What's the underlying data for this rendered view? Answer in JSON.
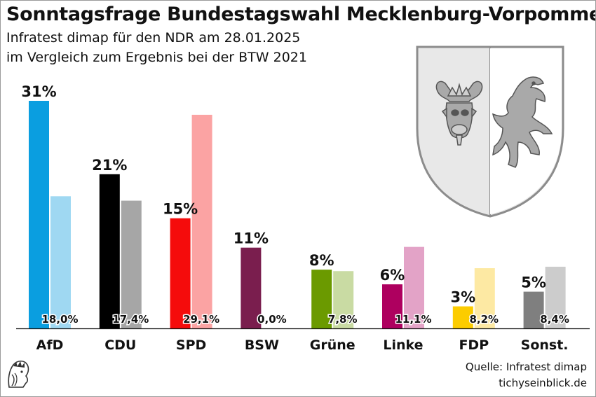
{
  "header": {
    "title": "Sonntagsfrage Bundestagswahl Mecklenburg-Vorpommern",
    "subtitle_line1": "Infratest dimap für den NDR am 28.01.2025",
    "subtitle_line2": "im Vergleich zum Ergebnis bei der BTW 2021"
  },
  "footer": {
    "source": "Quelle: Infratest dimap",
    "site": "tichyseinblick.de"
  },
  "chart_data": {
    "type": "bar",
    "title": "Sonntagsfrage Bundestagswahl Mecklenburg-Vorpommern",
    "categories": [
      "AfD",
      "CDU",
      "SPD",
      "BSW",
      "Grüne",
      "Linke",
      "FDP",
      "Sonst."
    ],
    "series": [
      {
        "name": "Infratest dimap 28.01.2025",
        "values": [
          31,
          21,
          15,
          11,
          8,
          6,
          3,
          5
        ],
        "labels": [
          "31%",
          "21%",
          "15%",
          "11%",
          "8%",
          "6%",
          "3%",
          "5%"
        ]
      },
      {
        "name": "BTW 2021",
        "values": [
          18.0,
          17.4,
          29.1,
          0.0,
          7.8,
          11.1,
          8.2,
          8.4
        ],
        "labels": [
          "18,0%",
          "17,4%",
          "29,1%",
          "0,0%",
          "7,8%",
          "11,1%",
          "8,2%",
          "8,4%"
        ]
      }
    ],
    "colors": {
      "current": [
        "#0a9ee0",
        "#000000",
        "#f50c0c",
        "#7a1e4e",
        "#6b9a00",
        "#ae005f",
        "#fccc00",
        "#7f7f7f"
      ],
      "previous": [
        "#9fd8f2",
        "#a6a6a6",
        "#fba3a3",
        "#c69ab1",
        "#c9dba3",
        "#e3a3c7",
        "#fde9a3",
        "#cccccc"
      ]
    },
    "xlabel": "",
    "ylabel": "",
    "ylim": [
      0,
      31
    ]
  }
}
